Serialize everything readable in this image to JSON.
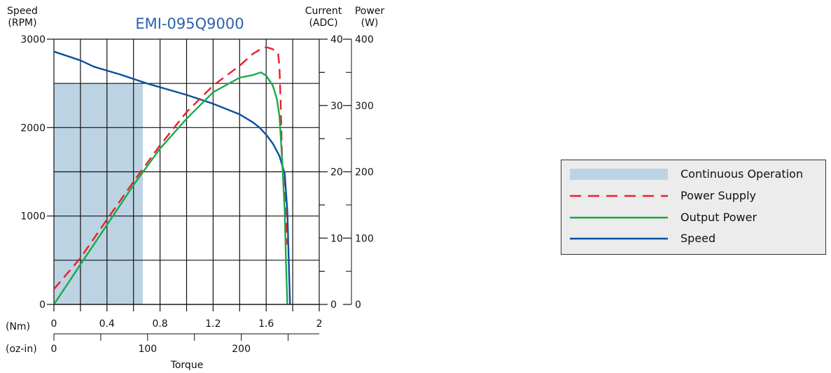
{
  "chart_data": {
    "type": "line",
    "title": "EMI-095Q9000",
    "left_axis": {
      "label_line1": "Speed",
      "label_line2": "(RPM)",
      "ticks": [
        "0",
        "1000",
        "2000",
        "3000"
      ],
      "range": [
        0,
        3000
      ]
    },
    "current_axis": {
      "label_line1": "Current",
      "label_line2": "(ADC)",
      "ticks": [
        "0",
        "10",
        "20",
        "30",
        "40"
      ],
      "range": [
        0,
        40
      ]
    },
    "power_axis": {
      "label_line1": "Power",
      "label_line2": "(W)",
      "ticks": [
        "0",
        "100",
        "200",
        "300",
        "400"
      ],
      "range": [
        0,
        400
      ]
    },
    "x_axis_nm": {
      "unit_label": "(Nm)",
      "ticks": [
        "0",
        "0.4",
        "0.8",
        "1.2",
        "1.6",
        "2"
      ],
      "range": [
        0,
        2
      ]
    },
    "x_axis_ozin": {
      "unit_label": "(oz-in)",
      "ticks": [
        "0",
        "100",
        "200"
      ]
    },
    "xlabel": "Torque",
    "grid": true,
    "continuous_region": {
      "x_end_nm": 0.67,
      "y_top_rpm": 2500
    },
    "series": [
      {
        "name": "Speed",
        "axis": "speed_rpm",
        "color": "#0a4fa0",
        "style": "solid",
        "points": [
          [
            0,
            2860
          ],
          [
            0.2,
            2760
          ],
          [
            0.3,
            2690
          ],
          [
            0.5,
            2600
          ],
          [
            0.7,
            2500
          ],
          [
            1.0,
            2370
          ],
          [
            1.2,
            2270
          ],
          [
            1.4,
            2150
          ],
          [
            1.5,
            2060
          ],
          [
            1.55,
            2000
          ],
          [
            1.6,
            1920
          ],
          [
            1.65,
            1820
          ],
          [
            1.7,
            1680
          ],
          [
            1.74,
            1480
          ],
          [
            1.76,
            1050
          ],
          [
            1.77,
            500
          ],
          [
            1.78,
            0
          ]
        ]
      },
      {
        "name": "Power Supply",
        "axis": "power_w",
        "color": "#e8202a",
        "style": "dashed",
        "points": [
          [
            0,
            23
          ],
          [
            0.2,
            70
          ],
          [
            0.4,
            128
          ],
          [
            0.6,
            185
          ],
          [
            0.8,
            240
          ],
          [
            1.0,
            290
          ],
          [
            1.2,
            330
          ],
          [
            1.4,
            360
          ],
          [
            1.5,
            378
          ],
          [
            1.56,
            385
          ],
          [
            1.6,
            388
          ],
          [
            1.65,
            385
          ],
          [
            1.69,
            378
          ],
          [
            1.7,
            360
          ],
          [
            1.71,
            300
          ],
          [
            1.72,
            220
          ],
          [
            1.74,
            160
          ],
          [
            1.76,
            90
          ]
        ]
      },
      {
        "name": "Output Power",
        "axis": "power_w",
        "color": "#1aa84a",
        "style": "solid",
        "points": [
          [
            0,
            0
          ],
          [
            0.2,
            60
          ],
          [
            0.4,
            120
          ],
          [
            0.6,
            180
          ],
          [
            0.8,
            235
          ],
          [
            1.0,
            280
          ],
          [
            1.2,
            320
          ],
          [
            1.4,
            342
          ],
          [
            1.5,
            346
          ],
          [
            1.56,
            350
          ],
          [
            1.6,
            345
          ],
          [
            1.65,
            330
          ],
          [
            1.68,
            310
          ],
          [
            1.7,
            285
          ],
          [
            1.72,
            220
          ],
          [
            1.74,
            140
          ],
          [
            1.75,
            60
          ],
          [
            1.76,
            0
          ]
        ]
      }
    ]
  },
  "legend": {
    "items": [
      {
        "key": "continuous",
        "label": "Continuous Operation",
        "color": "#bcd3e3",
        "kind": "area"
      },
      {
        "key": "power_supply",
        "label": "Power Supply",
        "color": "#e8202a",
        "kind": "dashed"
      },
      {
        "key": "output_power",
        "label": "Output Power",
        "color": "#1aa84a",
        "kind": "solid"
      },
      {
        "key": "speed",
        "label": "Speed",
        "color": "#0a4fa0",
        "kind": "solid"
      }
    ]
  }
}
